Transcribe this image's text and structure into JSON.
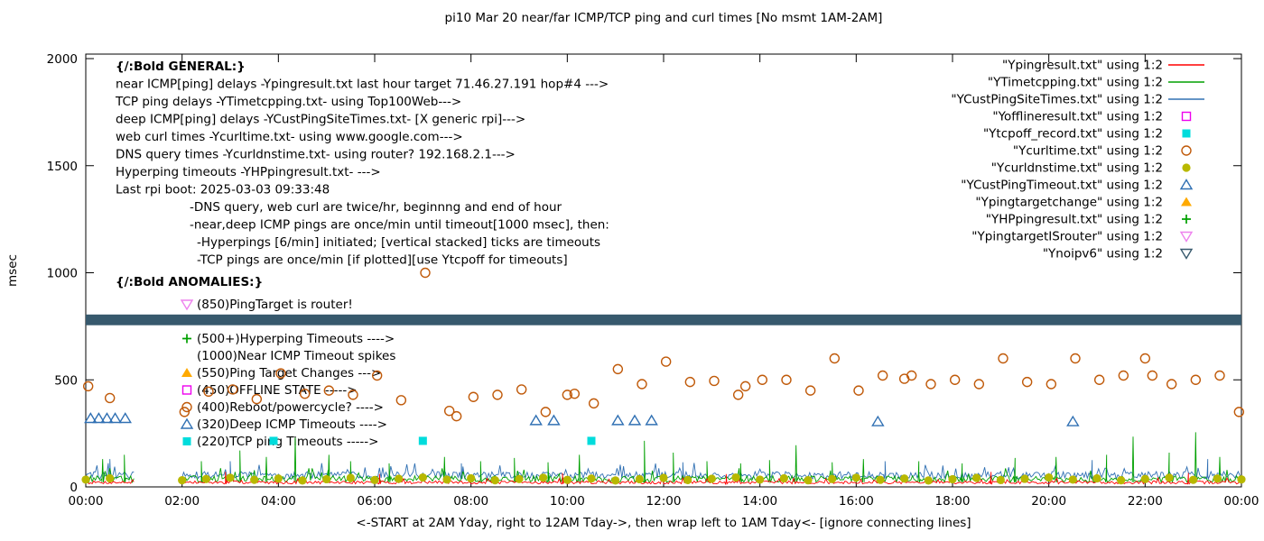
{
  "title": "pi10 Mar 20  near/far ICMP/TCP ping and curl times [No msmt 1AM-2AM]",
  "ylabel": "msec",
  "xlabel": "<-START at 2AM Yday, right to 12AM Tday->, then wrap left to 1AM Tday<- [ignore connecting lines]",
  "axes": {
    "ylim": [
      0,
      2000
    ],
    "yticks": [
      0,
      500,
      1000,
      1500,
      2000
    ],
    "xtick_hours": [
      0,
      2,
      4,
      6,
      8,
      10,
      12,
      14,
      16,
      18,
      20,
      22,
      24
    ],
    "xtick_labels": [
      "00:00",
      "02:00",
      "04:00",
      "06:00",
      "08:00",
      "10:00",
      "12:00",
      "14:00",
      "16:00",
      "18:00",
      "20:00",
      "22:00",
      "00:00"
    ],
    "no_measurement_gap_hours": [
      1,
      2
    ]
  },
  "legend": [
    {
      "label": "\"Ypingresult.txt\" using 1:2",
      "marker": "line",
      "color": "#ff0000"
    },
    {
      "label": "\"YTimetcpping.txt\" using 1:2",
      "marker": "line",
      "color": "#00a000"
    },
    {
      "label": "\"YCustPingSiteTimes.txt\" using 1:2",
      "marker": "line",
      "color": "#3070b3"
    },
    {
      "label": "\"Yofflineresult.txt\" using 1:2",
      "marker": "square-open",
      "color": "#ee00ee"
    },
    {
      "label": "\"Ytcpoff_record.txt\" using 1:2",
      "marker": "square-filled",
      "color": "#00dcdc"
    },
    {
      "label": "\"Ycurltime.txt\" using 1:2",
      "marker": "circle-open",
      "color": "#c05a0a"
    },
    {
      "label": "\"Ycurldnstime.txt\" using 1:2",
      "marker": "circle-filled",
      "color": "#b8b800"
    },
    {
      "label": "\"YCustPingTimeout.txt\" using 1:2",
      "marker": "triangle-up-open",
      "color": "#3070b3"
    },
    {
      "label": "\"Ypingtargetchange\" using 1:2",
      "marker": "triangle-up-filled",
      "color": "#ffaa00"
    },
    {
      "label": "\"YHPpingresult.txt\" using 1:2",
      "marker": "plus",
      "color": "#00a000"
    },
    {
      "label": "\"YpingtargetISrouter\" using 1:2",
      "marker": "triangle-down-open",
      "color": "#ee82ee"
    },
    {
      "label": "\"Ynoipv6\" using 1:2",
      "marker": "triangle-down-open",
      "color": "#37596d"
    }
  ],
  "annotations": {
    "general": [
      {
        "text": "{/:Bold GENERAL:}",
        "bold": true,
        "indent": 0
      },
      {
        "text": "near ICMP[ping] delays -Ypingresult.txt last hour target 71.46.27.191 hop#4 --->",
        "indent": 0
      },
      {
        "text": "TCP ping delays -YTimetcpping.txt- using Top100Web--->",
        "indent": 0
      },
      {
        "text": "deep ICMP[ping] delays -YCustPingSiteTimes.txt- [X generic rpi]--->",
        "indent": 0
      },
      {
        "text": "web curl times -Ycurltime.txt- using www.google.com--->",
        "indent": 0
      },
      {
        "text": "DNS query times -Ycurldnstime.txt- using router? 192.168.2.1--->",
        "indent": 0
      },
      {
        "text": "Hyperping timeouts -YHPpingresult.txt- --->",
        "indent": 0
      },
      {
        "text": "Last rpi boot: 2025-03-03 09:33:48",
        "indent": 0
      },
      {
        "text": "-DNS query, web curl are twice/hr, beginnng and end of hour",
        "indent": 82
      },
      {
        "text": "-near,deep ICMP pings are once/min until timeout[1000 msec], then:",
        "indent": 82
      },
      {
        "text": "-Hyperpings [6/min] initiated; [vertical stacked] ticks are timeouts",
        "indent": 90
      },
      {
        "text": "-TCP pings are once/min [if plotted][use Ytcpoff for timeouts]",
        "indent": 90
      }
    ],
    "anomalies_title": "{/:Bold ANOMALIES:}",
    "anomalies": [
      {
        "marker": "triangle-down-open",
        "color": "#ee82ee",
        "text": "(850)PingTarget is router!"
      },
      {
        "spacer": true,
        "text": ""
      },
      {
        "marker": "plus",
        "color": "#00a000",
        "text": "(500+)Hyperping Timeouts ---->"
      },
      {
        "marker": null,
        "color": "",
        "text": "(1000)Near ICMP Timeout spikes"
      },
      {
        "marker": "triangle-up-filled",
        "color": "#ffaa00",
        "text": "(550)Ping Target Changes --->"
      },
      {
        "marker": "square-open",
        "color": "#ee00ee",
        "text": "(450)OFFLINE STATE ----->"
      },
      {
        "marker": "circle-open",
        "color": "#c05a0a",
        "text": "(400)Reboot/powercycle? ---->"
      },
      {
        "marker": "triangle-up-open",
        "color": "#3070b3",
        "text": "(320)Deep ICMP Timeouts ---->"
      },
      {
        "marker": "square-filled",
        "color": "#00dcdc",
        "text": "(220)TCP ping Timeouts ----->"
      }
    ]
  },
  "chart_data": {
    "type": "line+scatter",
    "ylim": [
      0,
      2000
    ],
    "x_unit": "hour-of-day",
    "series": [
      {
        "name": "YCustPingSiteTimes.txt",
        "style": "noisy-line",
        "color": "#3070b3",
        "seed": 29,
        "base": 38,
        "amp": 34,
        "spikes": [
          [
            0.5,
            130
          ],
          [
            3.0,
            120
          ],
          [
            7.8,
            110
          ],
          [
            12.4,
            115
          ],
          [
            16.6,
            120
          ],
          [
            20.9,
            125
          ],
          [
            23.3,
            130
          ]
        ]
      },
      {
        "name": "YTimetcpping.txt",
        "style": "noisy-line",
        "color": "#00a000",
        "seed": 13,
        "base": 22,
        "amp": 30,
        "spikes": [
          [
            0.35,
            130
          ],
          [
            0.8,
            150
          ],
          [
            2.4,
            120
          ],
          [
            3.2,
            170
          ],
          [
            3.75,
            140
          ],
          [
            4.35,
            230
          ],
          [
            5.05,
            150
          ],
          [
            5.5,
            120
          ],
          [
            6.3,
            110
          ],
          [
            7.45,
            140
          ],
          [
            8.2,
            120
          ],
          [
            8.9,
            135
          ],
          [
            9.6,
            115
          ],
          [
            10.25,
            150
          ],
          [
            11.6,
            215
          ],
          [
            12.2,
            160
          ],
          [
            12.9,
            120
          ],
          [
            13.6,
            110
          ],
          [
            14.2,
            125
          ],
          [
            14.75,
            195
          ],
          [
            15.5,
            115
          ],
          [
            16.15,
            130
          ],
          [
            17.3,
            120
          ],
          [
            18.2,
            110
          ],
          [
            19.3,
            135
          ],
          [
            20.15,
            140
          ],
          [
            21.2,
            150
          ],
          [
            21.75,
            235
          ],
          [
            22.5,
            160
          ],
          [
            23.05,
            255
          ],
          [
            23.55,
            140
          ]
        ]
      },
      {
        "name": "Ypingresult.txt",
        "style": "noisy-line",
        "color": "#ff0000",
        "seed": 7,
        "base": 14,
        "amp": 14,
        "spikes": [
          [
            2.9,
            70
          ],
          [
            6.1,
            60
          ],
          [
            9.9,
            65
          ],
          [
            13.3,
            60
          ],
          [
            18.8,
            70
          ],
          [
            22.9,
            65
          ]
        ]
      },
      {
        "name": "Ynoipv6",
        "style": "band",
        "color": "#37596d",
        "y_low": 755,
        "y_high": 805
      },
      {
        "name": "Ycurltime.txt",
        "style": "scatter",
        "marker": "circle-open",
        "color": "#c05a0a",
        "points": [
          [
            0.05,
            470
          ],
          [
            0.5,
            415
          ],
          [
            2.05,
            350
          ],
          [
            2.55,
            445
          ],
          [
            3.05,
            455
          ],
          [
            3.55,
            410
          ],
          [
            4.05,
            530
          ],
          [
            4.55,
            435
          ],
          [
            5.05,
            450
          ],
          [
            5.55,
            430
          ],
          [
            6.05,
            520
          ],
          [
            6.55,
            405
          ],
          [
            7.05,
            1000
          ],
          [
            7.55,
            355
          ],
          [
            7.7,
            330
          ],
          [
            8.05,
            420
          ],
          [
            8.55,
            430
          ],
          [
            9.05,
            455
          ],
          [
            9.55,
            350
          ],
          [
            10.0,
            430
          ],
          [
            10.15,
            435
          ],
          [
            10.55,
            390
          ],
          [
            11.05,
            550
          ],
          [
            11.55,
            480
          ],
          [
            12.05,
            585
          ],
          [
            12.55,
            490
          ],
          [
            13.05,
            495
          ],
          [
            13.55,
            430
          ],
          [
            13.7,
            470
          ],
          [
            14.05,
            500
          ],
          [
            14.55,
            500
          ],
          [
            15.05,
            450
          ],
          [
            15.55,
            600
          ],
          [
            16.05,
            450
          ],
          [
            16.55,
            520
          ],
          [
            17.0,
            505
          ],
          [
            17.15,
            520
          ],
          [
            17.55,
            480
          ],
          [
            18.05,
            500
          ],
          [
            18.55,
            480
          ],
          [
            19.05,
            600
          ],
          [
            19.55,
            490
          ],
          [
            20.05,
            480
          ],
          [
            20.55,
            600
          ],
          [
            21.05,
            500
          ],
          [
            21.55,
            520
          ],
          [
            22.0,
            600
          ],
          [
            22.15,
            520
          ],
          [
            22.55,
            480
          ],
          [
            23.05,
            500
          ],
          [
            23.55,
            520
          ],
          [
            23.95,
            350
          ]
        ]
      },
      {
        "name": "Ycurldnstime.txt",
        "style": "scatter",
        "marker": "circle-filled",
        "color": "#b8b800",
        "points": [
          [
            0,
            34
          ],
          [
            0.5,
            40
          ],
          [
            2,
            31
          ],
          [
            2.5,
            37
          ],
          [
            3,
            43
          ],
          [
            3.5,
            33
          ],
          [
            4,
            39
          ],
          [
            4.5,
            30
          ],
          [
            5,
            36
          ],
          [
            5.5,
            42
          ],
          [
            6,
            32
          ],
          [
            6.5,
            38
          ],
          [
            7,
            44
          ],
          [
            7.5,
            34
          ],
          [
            8,
            40
          ],
          [
            8.5,
            31
          ],
          [
            9,
            37
          ],
          [
            9.5,
            43
          ],
          [
            10,
            33
          ],
          [
            10.5,
            39
          ],
          [
            11,
            30
          ],
          [
            11.5,
            36
          ],
          [
            12,
            42
          ],
          [
            12.5,
            32
          ],
          [
            13,
            38
          ],
          [
            13.5,
            44
          ],
          [
            14,
            34
          ],
          [
            14.5,
            40
          ],
          [
            15,
            31
          ],
          [
            15.5,
            37
          ],
          [
            16,
            43
          ],
          [
            16.5,
            33
          ],
          [
            17,
            39
          ],
          [
            17.5,
            30
          ],
          [
            18,
            36
          ],
          [
            18.5,
            42
          ],
          [
            19,
            32
          ],
          [
            19.5,
            38
          ],
          [
            20,
            44
          ],
          [
            20.5,
            34
          ],
          [
            21,
            40
          ],
          [
            21.5,
            31
          ],
          [
            22,
            37
          ],
          [
            22.5,
            43
          ],
          [
            23,
            33
          ],
          [
            23.5,
            39
          ],
          [
            24,
            35
          ]
        ]
      },
      {
        "name": "YCustPingTimeout.txt",
        "style": "scatter",
        "marker": "triangle-up-open",
        "color": "#3070b3",
        "points": [
          [
            0.1,
            320
          ],
          [
            0.27,
            320
          ],
          [
            0.44,
            320
          ],
          [
            0.61,
            320
          ],
          [
            0.82,
            320
          ],
          [
            9.35,
            310
          ],
          [
            9.72,
            310
          ],
          [
            11.05,
            310
          ],
          [
            11.4,
            310
          ],
          [
            11.75,
            310
          ],
          [
            16.45,
            305
          ],
          [
            20.5,
            305
          ]
        ]
      },
      {
        "name": "Ytcpoff_record.txt",
        "style": "scatter",
        "marker": "square-filled",
        "color": "#00dcdc",
        "points": [
          [
            3.9,
            215
          ],
          [
            7.0,
            215
          ],
          [
            10.5,
            215
          ]
        ]
      },
      {
        "name": "Yofflineresult.txt",
        "style": "scatter",
        "marker": "square-open",
        "color": "#ee00ee",
        "points": []
      },
      {
        "name": "Ypingtargetchange",
        "style": "scatter",
        "marker": "triangle-up-filled",
        "color": "#ffaa00",
        "points": []
      },
      {
        "name": "YHPpingresult.txt",
        "style": "scatter",
        "marker": "plus",
        "color": "#00a000",
        "points": []
      },
      {
        "name": "YpingtargetISrouter",
        "style": "scatter",
        "marker": "triangle-down-open",
        "color": "#ee82ee",
        "points": []
      }
    ]
  }
}
